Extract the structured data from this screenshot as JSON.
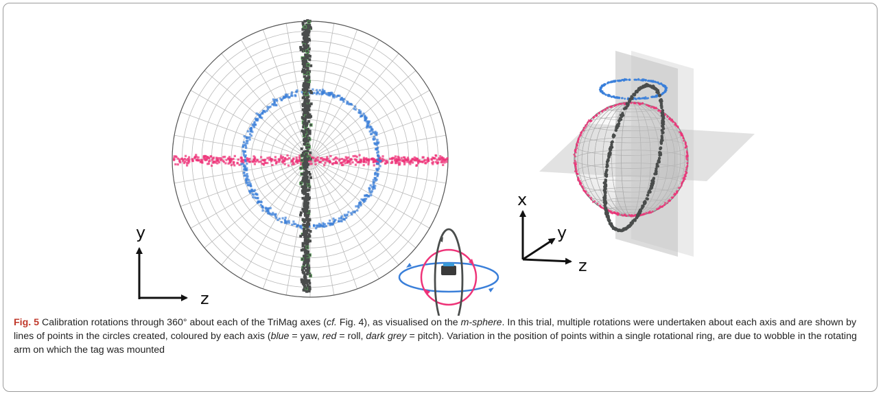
{
  "figure": {
    "left_panel": {
      "axis_labels": {
        "vertical": "y",
        "horizontal": "z"
      }
    },
    "right_panel": {
      "axis_labels": {
        "up": "x",
        "diagonal": "y",
        "horizontal": "z"
      }
    },
    "colors": {
      "yaw": "#3a7fd9",
      "roll": "#ee3378",
      "pitch": "#4a4d4c",
      "pitch_edge": "#5aa85a",
      "grid": "#b9b9b9",
      "plane": "#bfbfbf"
    }
  },
  "caption": {
    "fig_label": "Fig. 5",
    "text_1": " Calibration rotations through 360° about each of the TriMag axes (",
    "cf": "cf.",
    "text_2": " Fig. 4), as visualised on the ",
    "msphere": "m-sphere",
    "text_3": ". In this trial, multiple rotations were undertaken about each axis and are shown by lines of points in the circles created, coloured by each axis (",
    "blue_term": "blue",
    "blue_def": " = yaw, ",
    "red_term": "red",
    "red_def": " = roll, ",
    "grey_term": "dark grey",
    "grey_def": " = pitch). Variation in the position of points within a single rotational ring, are due to wobble in the rotating arm on which the tag was mounted"
  }
}
